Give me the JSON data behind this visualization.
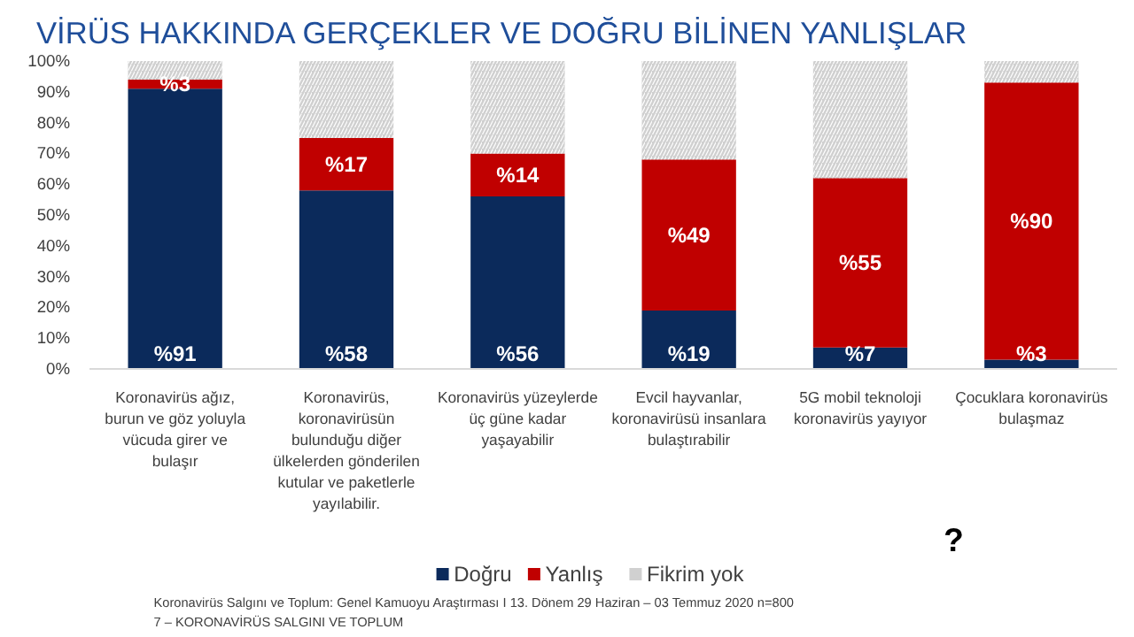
{
  "chart_data": {
    "type": "bar",
    "title": "VİRÜS HAKKINDA GERÇEKLER VE DOĞRU BİLİNEN YANLIŞLAR",
    "stacked": true,
    "categories": [
      "Koronavirüs ağız, burun ve göz yoluyla vücuda girer ve bulaşır",
      "Koronavirüs, koronavirüsün bulunduğu diğer ülkelerden gönderilen kutular ve paketlerle yayılabilir.",
      "Koronavirüs yüzeylerde üç güne kadar yaşayabilir",
      "Evcil hayvanlar, koronavirüsü insanlara bulaştırabilir",
      "5G mobil teknoloji koronavirüs yayıyor",
      "Çocuklara koronavirüs bulaşmaz"
    ],
    "series": [
      {
        "name": "Doğru",
        "color": "#0b2a5b",
        "values": [
          91,
          58,
          56,
          19,
          7,
          3
        ],
        "value_labels": [
          "%91",
          "%58",
          "%56",
          "%19",
          "%7",
          "%3"
        ]
      },
      {
        "name": "Yanlış",
        "color": "#c00000",
        "values": [
          3,
          17,
          14,
          49,
          55,
          90
        ],
        "value_labels": [
          "%3",
          "%17",
          "%14",
          "%49",
          "%55",
          "%90"
        ]
      },
      {
        "name": "Fikrim yok",
        "color": "#d0d0d0",
        "values": [
          6,
          25,
          30,
          32,
          38,
          7
        ]
      }
    ],
    "ylim": [
      0,
      100
    ],
    "yticks": [
      {
        "value": 0,
        "label": "0%"
      },
      {
        "value": 10,
        "label": "10%"
      },
      {
        "value": 20,
        "label": "20%"
      },
      {
        "value": 30,
        "label": "30%"
      },
      {
        "value": 40,
        "label": "40%"
      },
      {
        "value": 50,
        "label": "50%"
      },
      {
        "value": 60,
        "label": "60%"
      },
      {
        "value": 70,
        "label": "70%"
      },
      {
        "value": 80,
        "label": "80%"
      },
      {
        "value": 90,
        "label": "90%"
      },
      {
        "value": 100,
        "label": "100%"
      }
    ],
    "grid": false,
    "legend": "bottom",
    "annotations": [
      "?",
      "Koronavirüs Salgını ve Toplum: Genel Kamuoyu Araştırması I 13. Dönem 29 Haziran – 03 Temmuz 2020 n=800",
      "7 – KORONAVİRÜS SALGINI VE TOPLUM"
    ]
  }
}
